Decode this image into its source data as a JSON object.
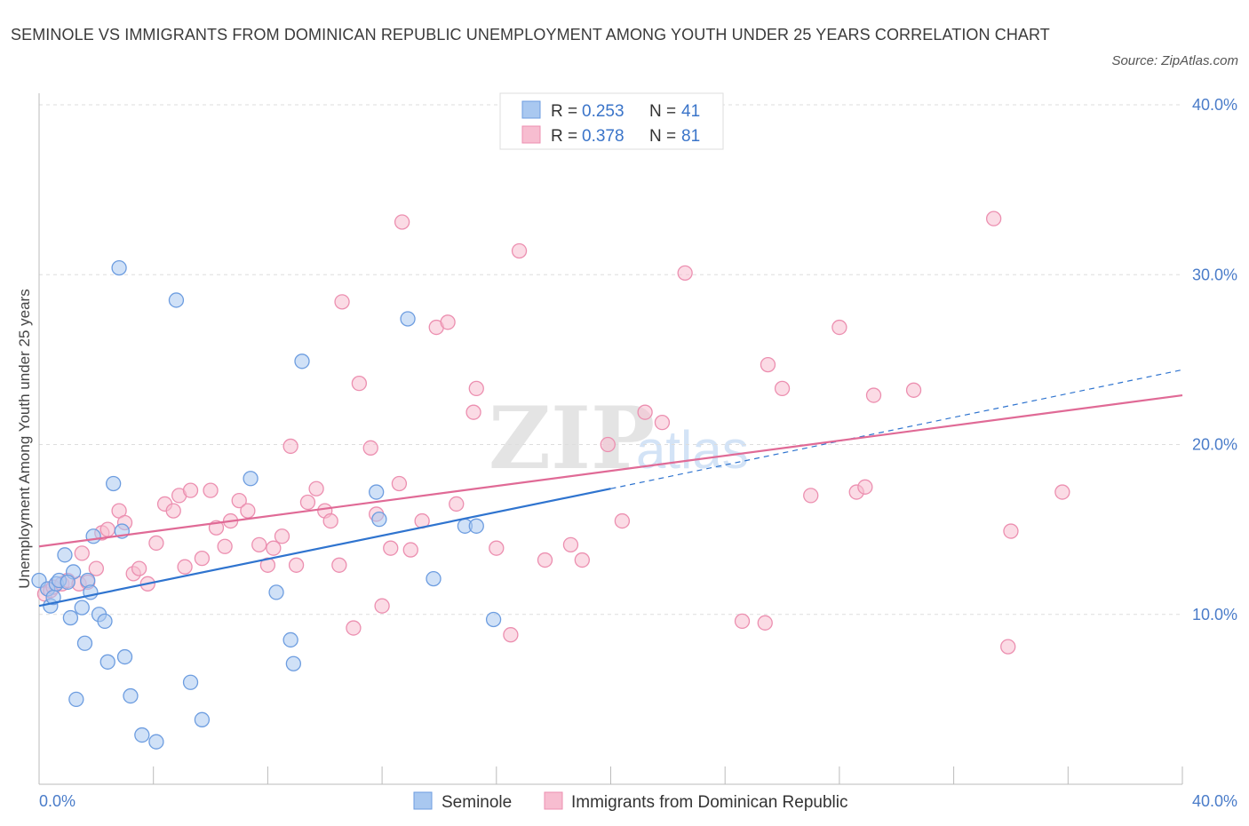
{
  "header": {
    "title": "SEMINOLE VS IMMIGRANTS FROM DOMINICAN REPUBLIC UNEMPLOYMENT AMONG YOUTH UNDER 25 YEARS CORRELATION CHART",
    "source": "Source: ZipAtlas.com"
  },
  "watermark": {
    "zip": "ZIP",
    "atlas": "atlas"
  },
  "legend": {
    "r_label": "R = ",
    "n_label": "N = ",
    "entries": [
      {
        "name": "Seminole",
        "r": "0.253",
        "n": "41"
      },
      {
        "name": "Immigrants from Dominican Republic",
        "r": "0.378",
        "n": "81"
      }
    ]
  },
  "colors": {
    "seminole_fill": "#a9c8f0",
    "seminole_stroke": "#6d9de0",
    "seminole_line": "#2f74cf",
    "dominican_fill": "#f7bdd0",
    "dominican_stroke": "#ec8fb0",
    "dominican_line": "#e06a96",
    "tick_text": "#4a7cc9",
    "grid": "#dddddd"
  },
  "chart_data": {
    "type": "scatter",
    "title": "SEMINOLE VS IMMIGRANTS FROM DOMINICAN REPUBLIC UNEMPLOYMENT AMONG YOUTH UNDER 25 YEARS CORRELATION CHART",
    "xlabel": "",
    "ylabel": "Unemployment Among Youth under 25 years",
    "xlim": [
      0,
      40
    ],
    "ylim": [
      0,
      40
    ],
    "x_tick_labels": [
      "0.0%",
      "40.0%"
    ],
    "y_ticks": [
      10,
      20,
      30,
      40
    ],
    "y_tick_labels": [
      "10.0%",
      "20.0%",
      "30.0%",
      "40.0%"
    ],
    "grid": true,
    "legend_position": "top-center",
    "series": [
      {
        "name": "Seminole",
        "r": 0.253,
        "n": 41,
        "trend": {
          "x0": 0,
          "y0": 10.5,
          "x1": 20,
          "y1": 17.4,
          "dash_to_x": 40,
          "dash_to_y": 24.4
        },
        "points": [
          [
            0.0,
            12.0
          ],
          [
            0.3,
            11.5
          ],
          [
            0.4,
            10.5
          ],
          [
            0.6,
            11.8
          ],
          [
            0.7,
            12.0
          ],
          [
            0.9,
            13.5
          ],
          [
            1.1,
            9.8
          ],
          [
            1.2,
            12.5
          ],
          [
            1.3,
            5.0
          ],
          [
            1.5,
            10.4
          ],
          [
            1.6,
            8.3
          ],
          [
            1.7,
            12.0
          ],
          [
            1.8,
            11.3
          ],
          [
            1.9,
            14.6
          ],
          [
            2.1,
            10.0
          ],
          [
            2.3,
            9.6
          ],
          [
            2.4,
            7.2
          ],
          [
            2.6,
            17.7
          ],
          [
            2.8,
            30.4
          ],
          [
            2.9,
            14.9
          ],
          [
            3.0,
            7.5
          ],
          [
            3.2,
            5.2
          ],
          [
            3.6,
            2.9
          ],
          [
            4.1,
            2.5
          ],
          [
            4.8,
            28.5
          ],
          [
            5.3,
            6.0
          ],
          [
            5.7,
            3.8
          ],
          [
            7.4,
            18.0
          ],
          [
            8.3,
            11.3
          ],
          [
            8.8,
            8.5
          ],
          [
            8.9,
            7.1
          ],
          [
            9.2,
            24.9
          ],
          [
            11.8,
            17.2
          ],
          [
            11.9,
            15.6
          ],
          [
            12.9,
            27.4
          ],
          [
            13.8,
            12.1
          ],
          [
            14.9,
            15.2
          ],
          [
            15.3,
            15.2
          ],
          [
            15.9,
            9.7
          ],
          [
            0.5,
            11.0
          ],
          [
            1.0,
            11.9
          ]
        ]
      },
      {
        "name": "Immigrants from Dominican Republic",
        "r": 0.378,
        "n": 81,
        "trend": {
          "x0": 0,
          "y0": 14.0,
          "x1": 40,
          "y1": 22.9
        },
        "points": [
          [
            0.2,
            11.2
          ],
          [
            0.4,
            11.4
          ],
          [
            0.5,
            11.6
          ],
          [
            0.8,
            11.8
          ],
          [
            1.0,
            12.0
          ],
          [
            1.4,
            11.8
          ],
          [
            1.5,
            13.6
          ],
          [
            1.7,
            11.9
          ],
          [
            2.0,
            12.7
          ],
          [
            2.2,
            14.8
          ],
          [
            2.4,
            15.0
          ],
          [
            2.8,
            16.1
          ],
          [
            3.0,
            15.4
          ],
          [
            3.3,
            12.4
          ],
          [
            3.5,
            12.7
          ],
          [
            3.8,
            11.8
          ],
          [
            4.1,
            14.2
          ],
          [
            4.4,
            16.5
          ],
          [
            4.7,
            16.1
          ],
          [
            4.9,
            17.0
          ],
          [
            5.1,
            12.8
          ],
          [
            5.3,
            17.3
          ],
          [
            5.7,
            13.3
          ],
          [
            6.0,
            17.3
          ],
          [
            6.2,
            15.1
          ],
          [
            6.5,
            14.0
          ],
          [
            6.7,
            15.5
          ],
          [
            7.0,
            16.7
          ],
          [
            7.3,
            16.1
          ],
          [
            7.7,
            14.1
          ],
          [
            8.0,
            12.9
          ],
          [
            8.2,
            13.9
          ],
          [
            8.5,
            14.6
          ],
          [
            8.8,
            19.9
          ],
          [
            9.0,
            12.9
          ],
          [
            9.4,
            16.6
          ],
          [
            9.7,
            17.4
          ],
          [
            10.0,
            16.1
          ],
          [
            10.2,
            15.5
          ],
          [
            10.5,
            12.9
          ],
          [
            10.6,
            28.4
          ],
          [
            11.0,
            9.2
          ],
          [
            11.2,
            23.6
          ],
          [
            11.6,
            19.8
          ],
          [
            11.8,
            15.9
          ],
          [
            12.0,
            10.5
          ],
          [
            12.3,
            13.9
          ],
          [
            12.6,
            17.7
          ],
          [
            12.7,
            33.1
          ],
          [
            13.0,
            13.8
          ],
          [
            13.4,
            15.5
          ],
          [
            13.9,
            26.9
          ],
          [
            14.3,
            27.2
          ],
          [
            14.6,
            16.5
          ],
          [
            15.2,
            21.9
          ],
          [
            15.3,
            23.3
          ],
          [
            16.0,
            13.9
          ],
          [
            16.5,
            8.8
          ],
          [
            16.8,
            31.4
          ],
          [
            17.7,
            13.2
          ],
          [
            18.6,
            14.1
          ],
          [
            19.0,
            13.2
          ],
          [
            19.9,
            20.0
          ],
          [
            20.4,
            15.5
          ],
          [
            21.2,
            21.9
          ],
          [
            21.8,
            21.3
          ],
          [
            22.6,
            30.1
          ],
          [
            24.6,
            9.6
          ],
          [
            25.4,
            9.5
          ],
          [
            25.5,
            24.7
          ],
          [
            26.0,
            23.3
          ],
          [
            27.0,
            17.0
          ],
          [
            28.0,
            26.9
          ],
          [
            28.6,
            17.2
          ],
          [
            28.9,
            17.5
          ],
          [
            29.2,
            22.9
          ],
          [
            30.6,
            23.2
          ],
          [
            33.4,
            33.3
          ],
          [
            33.9,
            8.1
          ],
          [
            34.0,
            14.9
          ],
          [
            35.8,
            17.2
          ]
        ]
      }
    ]
  }
}
